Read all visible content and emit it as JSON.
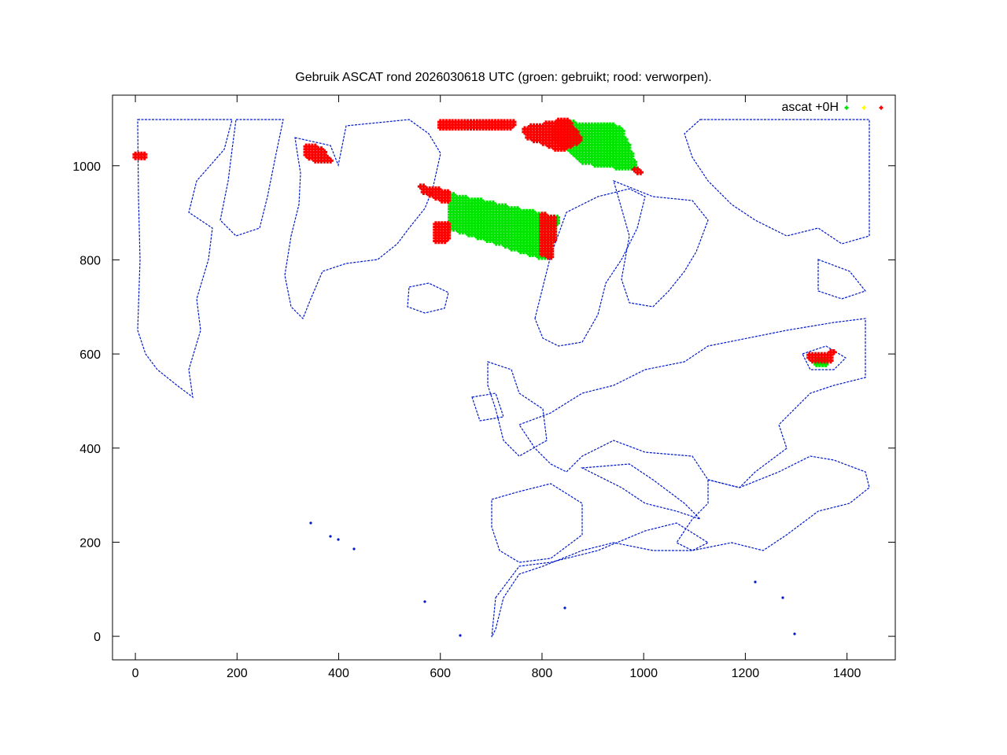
{
  "chart_data": {
    "type": "scatter",
    "title": "Gebruik ASCAT rond 2026030618 UTC (groen: gebruikt; rood: verworpen).",
    "xlabel": "",
    "ylabel": "",
    "xlim": [
      -45,
      1495
    ],
    "ylim": [
      -50,
      1150
    ],
    "xticks": [
      0,
      200,
      400,
      600,
      800,
      1000,
      1200,
      1400
    ],
    "yticks": [
      0,
      200,
      400,
      600,
      800,
      1000
    ],
    "grid": false,
    "legend_placement": "top-right",
    "legend_title": "ascat +0H",
    "series": [
      {
        "key": "used",
        "color": "#00e600",
        "regions": [
          [
            [
              620,
              940
            ],
            [
              835,
              890
            ],
            [
              810,
              800
            ],
            [
              620,
              865
            ]
          ],
          [
            [
              830,
              1095
            ],
            [
              955,
              1085
            ],
            [
              990,
              990
            ],
            [
              880,
              1005
            ],
            [
              820,
              1060
            ]
          ],
          [
            [
              1340,
              590
            ],
            [
              1360,
              590
            ],
            [
              1360,
              578
            ],
            [
              1340,
              578
            ]
          ]
        ]
      },
      {
        "key": "intermediate",
        "color": "#ffff00",
        "regions": []
      },
      {
        "key": "rejected",
        "color": "#ff0000",
        "regions": [
          [
            [
              600,
              1098
            ],
            [
              750,
              1098
            ],
            [
              740,
              1075
            ],
            [
              600,
              1080
            ]
          ],
          [
            [
              760,
              1080
            ],
            [
              850,
              1100
            ],
            [
              880,
              1055
            ],
            [
              840,
              1030
            ],
            [
              770,
              1060
            ]
          ],
          [
            [
              970,
              1000
            ],
            [
              1000,
              990
            ],
            [
              990,
              980
            ]
          ],
          [
            [
              330,
              1045
            ],
            [
              365,
              1040
            ],
            [
              385,
              1010
            ],
            [
              365,
              1005
            ],
            [
              335,
              1020
            ]
          ],
          [
            [
              0,
              1030
            ],
            [
              20,
              1030
            ],
            [
              20,
              1018
            ],
            [
              0,
              1018
            ]
          ],
          [
            [
              555,
              960
            ],
            [
              620,
              945
            ],
            [
              615,
              920
            ],
            [
              570,
              940
            ]
          ],
          [
            [
              585,
              880
            ],
            [
              620,
              880
            ],
            [
              615,
              840
            ],
            [
              590,
              840
            ]
          ],
          [
            [
              800,
              900
            ],
            [
              830,
              890
            ],
            [
              820,
              800
            ],
            [
              800,
              810
            ]
          ],
          [
            [
              1320,
              600
            ],
            [
              1375,
              605
            ],
            [
              1370,
              580
            ],
            [
              1330,
              585
            ]
          ]
        ]
      }
    ]
  }
}
